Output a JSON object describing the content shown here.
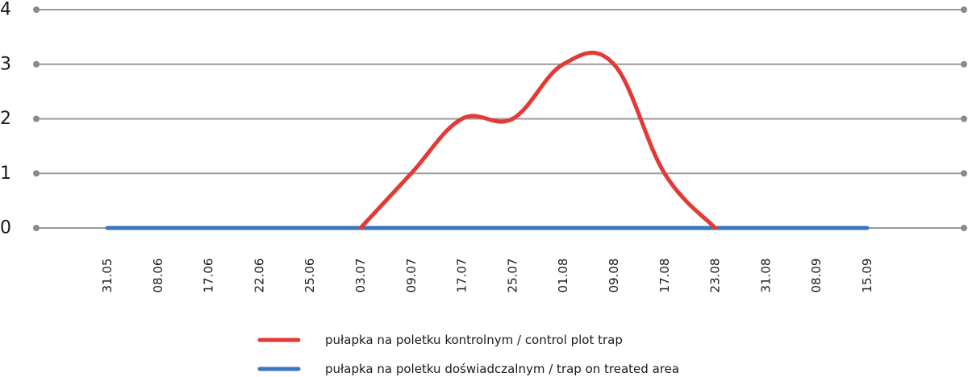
{
  "chart_data": {
    "type": "line",
    "title": "",
    "xlabel": "",
    "ylabel": "",
    "ylim": [
      0,
      4
    ],
    "yticks": [
      "0",
      "1",
      "2",
      "3",
      "4"
    ],
    "categories": [
      "31.05",
      "08.06",
      "17.06",
      "22.06",
      "25.06",
      "03.07",
      "09.07",
      "17.07",
      "25.07",
      "01.08",
      "09.08",
      "17.08",
      "23.08",
      "31.08",
      "08.09",
      "15.09"
    ],
    "grid": true,
    "legend_position": "bottom",
    "series": [
      {
        "name": "pułapka na poletku kontrolnym / control plot trap",
        "color": "#e33a35",
        "values": [
          null,
          null,
          null,
          null,
          null,
          0,
          1,
          2,
          2,
          3,
          3,
          1,
          0,
          null,
          null,
          null
        ]
      },
      {
        "name": "pułapka na poletku doświadczalnym / trap on treated area",
        "color": "#3a77c0",
        "values": [
          0,
          0,
          0,
          0,
          0,
          0,
          0,
          0,
          0,
          0,
          0,
          0,
          0,
          0,
          0,
          0
        ]
      }
    ]
  }
}
